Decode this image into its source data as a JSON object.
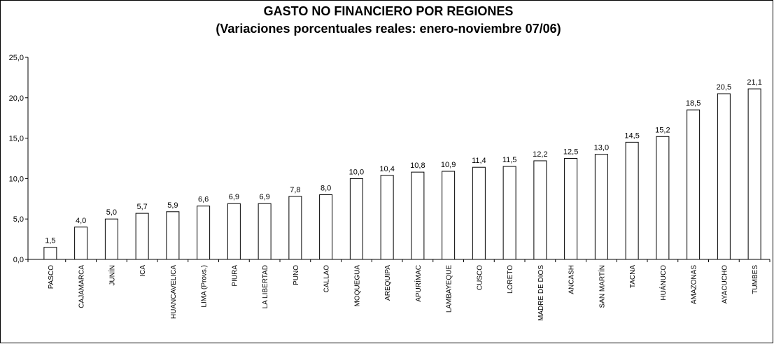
{
  "chart_data": {
    "type": "bar",
    "title": "GASTO NO FINANCIERO POR REGIONES",
    "subtitle": "(Variaciones porcentuales reales: enero-noviembre 07/06)",
    "categories": [
      "PASCO",
      "CAJAMARCA",
      "JUNÍN",
      "ICA",
      "HUANCAVELICA",
      "LIMA (Provs.)",
      "PIURA",
      "LA LIBERTAD",
      "PUNO",
      "CALLAO",
      "MOQUEGUA",
      "AREQUIPA",
      "APURÍMAC",
      "LAMBAYEQUE",
      "CUSCO",
      "LORETO",
      "MADRE DE DIOS",
      "ANCASH",
      "SAN MARTÍN",
      "TACNA",
      "HUÁNUCO",
      "AMAZONAS",
      "AYACUCHO",
      "TUMBES"
    ],
    "values": [
      1.5,
      4.0,
      5.0,
      5.7,
      5.9,
      6.6,
      6.9,
      6.9,
      7.8,
      8.0,
      10.0,
      10.4,
      10.8,
      10.9,
      11.4,
      11.5,
      12.2,
      12.5,
      13.0,
      14.5,
      15.2,
      18.5,
      20.5,
      21.1
    ],
    "value_labels": [
      "1,5",
      "4,0",
      "5,0",
      "5,7",
      "5,9",
      "6,6",
      "6,9",
      "6,9",
      "7,8",
      "8,0",
      "10,0",
      "10,4",
      "10,8",
      "10,9",
      "11,4",
      "11,5",
      "12,2",
      "12,5",
      "13,0",
      "14,5",
      "15,2",
      "18,5",
      "20,5",
      "21,1"
    ],
    "color": "#ffffff",
    "ylim": [
      0,
      25
    ],
    "yticks": [
      {
        "value": 0,
        "label": "0,0"
      },
      {
        "value": 5,
        "label": "5,0"
      },
      {
        "value": 10,
        "label": "10,0"
      },
      {
        "value": 15,
        "label": "15,0"
      },
      {
        "value": 20,
        "label": "20,0"
      },
      {
        "value": 25,
        "label": "25,0"
      }
    ],
    "grid": false
  }
}
